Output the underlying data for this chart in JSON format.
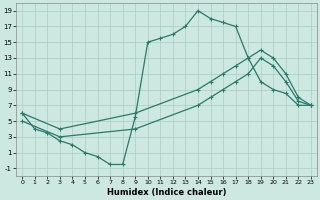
{
  "xlabel": "Humidex (Indice chaleur)",
  "ylabel": "",
  "bg_color": "#cce8e0",
  "grid_color": "#aaccc4",
  "line_color": "#2a7a68",
  "xlim": [
    -0.5,
    23.5
  ],
  "ylim": [
    -2,
    20
  ],
  "xticks": [
    0,
    1,
    2,
    3,
    4,
    5,
    6,
    7,
    8,
    9,
    10,
    11,
    12,
    13,
    14,
    15,
    16,
    17,
    18,
    19,
    20,
    21,
    22,
    23
  ],
  "yticks": [
    -1,
    1,
    3,
    5,
    7,
    9,
    11,
    13,
    15,
    17,
    19
  ],
  "line1_x": [
    0,
    1,
    2,
    3,
    4,
    5,
    6,
    7,
    8,
    9,
    10,
    11,
    12,
    13,
    14,
    15,
    16,
    17,
    18,
    19,
    20,
    21,
    22,
    23
  ],
  "line1_y": [
    6,
    4,
    3.5,
    2.5,
    2,
    1,
    0.5,
    -0.5,
    -0.5,
    5.5,
    15,
    15.5,
    16,
    17,
    19,
    18,
    17.5,
    17,
    13,
    10,
    9,
    8.5,
    7,
    7
  ],
  "line2_x": [
    0,
    3,
    9,
    14,
    15,
    16,
    17,
    18,
    19,
    20,
    21,
    22,
    23
  ],
  "line2_y": [
    6,
    4,
    6,
    9,
    10,
    11,
    12,
    13,
    14,
    13,
    11,
    8,
    7
  ],
  "line3_x": [
    0,
    3,
    9,
    14,
    15,
    16,
    17,
    18,
    19,
    20,
    21,
    22,
    23
  ],
  "line3_y": [
    5,
    3,
    4,
    7,
    8,
    9,
    10,
    11,
    13,
    12,
    10,
    7.5,
    7
  ]
}
